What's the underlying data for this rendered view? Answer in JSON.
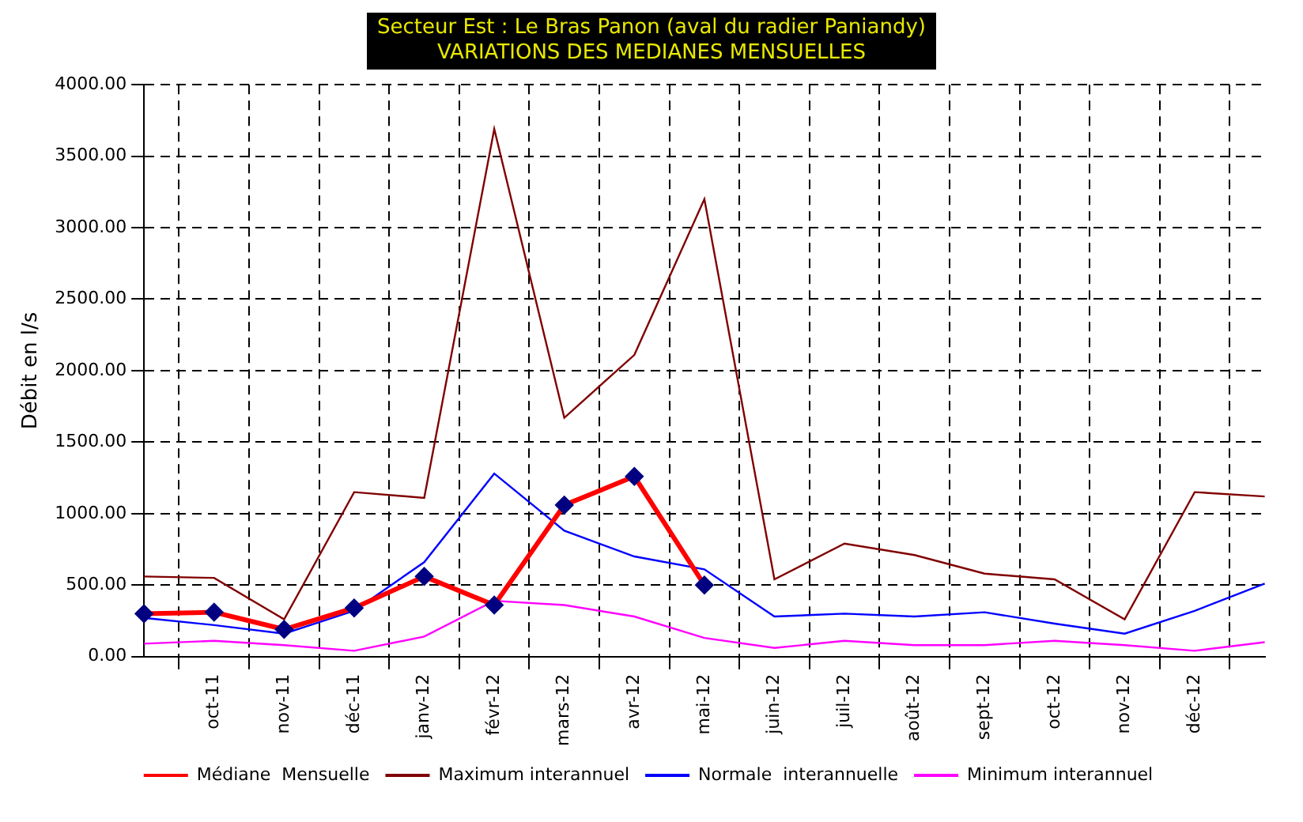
{
  "chart_data": {
    "type": "line",
    "title": "Secteur Est : Le Bras Panon (aval du radier Paniandy)\nVARIATIONS DES MEDIANES MENSUELLES",
    "ylabel": "Débit en l/s",
    "categories": [
      null,
      "oct-11",
      "nov-11",
      "déc-11",
      "janv-12",
      "févr-12",
      "mars-12",
      "avr-12",
      "mai-12",
      "juin-12",
      "juil-12",
      "août-12",
      "sept-12",
      "oct-12",
      "nov-12",
      "déc-12",
      null
    ],
    "series": [
      {
        "name": "Médiane  Mensuelle",
        "color": "#ff0000",
        "marker": "diamond",
        "values": [
          300,
          310,
          190,
          340,
          560,
          360,
          1060,
          1260,
          500,
          null,
          null,
          null,
          null,
          null,
          null,
          null,
          null
        ]
      },
      {
        "name": "Maximum interannuel",
        "color": "#800000",
        "marker": "none",
        "values": [
          560,
          550,
          260,
          1150,
          1110,
          3690,
          1670,
          2110,
          3200,
          540,
          790,
          710,
          580,
          540,
          260,
          1150,
          1120
        ]
      },
      {
        "name": "Normale  interannuelle",
        "color": "#0000ff",
        "marker": "none",
        "values": [
          270,
          220,
          160,
          320,
          660,
          1280,
          880,
          700,
          610,
          280,
          300,
          280,
          310,
          230,
          160,
          320,
          510
        ]
      },
      {
        "name": "Minimum interannuel",
        "color": "#ff00ff",
        "marker": "none",
        "values": [
          90,
          110,
          80,
          40,
          140,
          390,
          360,
          280,
          130,
          60,
          110,
          80,
          80,
          110,
          80,
          40,
          100
        ]
      }
    ],
    "ylim": [
      0,
      4000
    ],
    "yticks": [
      {
        "value": 0,
        "label": "0.00"
      },
      {
        "value": 500,
        "label": "500.00"
      },
      {
        "value": 1000,
        "label": "1000.00"
      },
      {
        "value": 1500,
        "label": "1500.00"
      },
      {
        "value": 2000,
        "label": "2000.00"
      },
      {
        "value": 2500,
        "label": "2500.00"
      },
      {
        "value": 3000,
        "label": "3000.00"
      },
      {
        "value": 3500,
        "label": "3500.00"
      },
      {
        "value": 4000,
        "label": "4000.00"
      }
    ],
    "grid": true,
    "legend": "bottom"
  }
}
